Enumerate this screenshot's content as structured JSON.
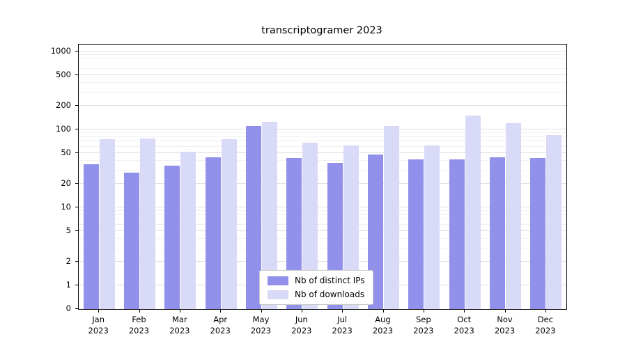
{
  "chart_data": {
    "type": "bar",
    "title": "transcriptogramer 2023",
    "year": "2023",
    "categories": [
      "Jan",
      "Feb",
      "Mar",
      "Apr",
      "May",
      "Jun",
      "Jul",
      "Aug",
      "Sep",
      "Oct",
      "Nov",
      "Dec"
    ],
    "series": [
      {
        "name": "Nb of distinct IPs",
        "color": "#9191ec",
        "values": [
          36,
          28,
          34,
          44,
          110,
          43,
          37,
          48,
          41,
          41,
          44,
          43
        ]
      },
      {
        "name": "Nb of downloads",
        "color": "#d9d9f8",
        "values": [
          75,
          76,
          52,
          75,
          125,
          68,
          62,
          110,
          62,
          150,
          120,
          85
        ]
      }
    ],
    "yscale": "symlog",
    "yticks": [
      0,
      1,
      2,
      5,
      10,
      20,
      50,
      100,
      200,
      500,
      1000
    ],
    "ylim": [
      0,
      1000
    ],
    "grid": true,
    "legend_position": "bottom-center"
  }
}
